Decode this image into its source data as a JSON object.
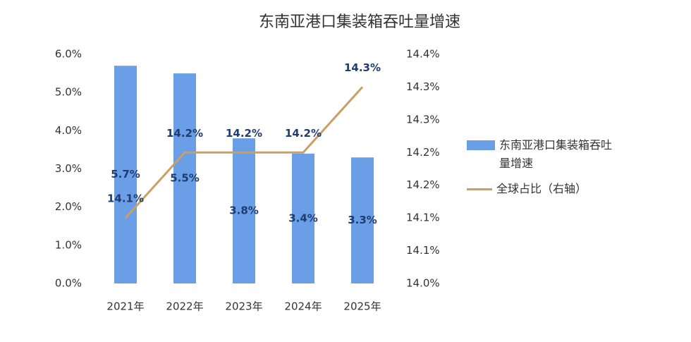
{
  "chart_data": {
    "type": "bar",
    "title": "东南亚港口集装箱吞吐量增速",
    "categories": [
      "2021年",
      "2022年",
      "2023年",
      "2024年",
      "2025年"
    ],
    "series": [
      {
        "name": "东南亚港口集装箱吞吐量增速",
        "type": "bar",
        "color": "#6a9ee6",
        "values": [
          5.7,
          5.5,
          3.8,
          3.4,
          3.3
        ],
        "value_labels": [
          "5.7%",
          "5.5%",
          "3.8%",
          "3.4%",
          "3.3%"
        ]
      },
      {
        "name": "全球占比（右轴）",
        "type": "line",
        "axis": "y2",
        "color": "#c9a063",
        "values": [
          14.1,
          14.2,
          14.2,
          14.2,
          14.3
        ],
        "value_labels": [
          "14.1%",
          "14.2%",
          "14.2%",
          "14.2%",
          "14.3%"
        ]
      }
    ],
    "ylim": [
      0,
      6
    ],
    "yticks": [
      {
        "value": 0,
        "label": "0.0%"
      },
      {
        "value": 1,
        "label": "1.0%"
      },
      {
        "value": 2,
        "label": "2.0%"
      },
      {
        "value": 3,
        "label": "3.0%"
      },
      {
        "value": 4,
        "label": "4.0%"
      },
      {
        "value": 5,
        "label": "5.0%"
      },
      {
        "value": 6,
        "label": "6.0%"
      }
    ],
    "y2lim": [
      14.0,
      14.35
    ],
    "y2ticks": [
      {
        "value": 14.0,
        "label": "14.0%"
      },
      {
        "value": 14.05,
        "label": "14.1%"
      },
      {
        "value": 14.1,
        "label": "14.1%"
      },
      {
        "value": 14.15,
        "label": "14.2%"
      },
      {
        "value": 14.2,
        "label": "14.2%"
      },
      {
        "value": 14.25,
        "label": "14.3%"
      },
      {
        "value": 14.3,
        "label": "14.3%"
      },
      {
        "value": 14.35,
        "label": "14.4%"
      }
    ],
    "grid": false,
    "legend": "right"
  }
}
